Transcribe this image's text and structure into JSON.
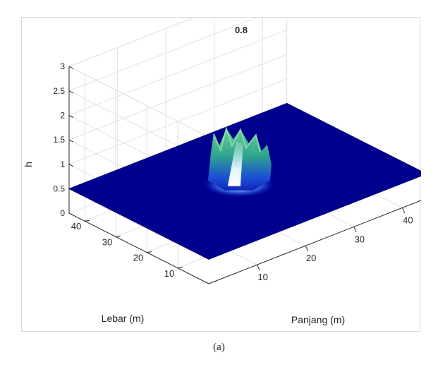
{
  "chart_data": {
    "type": "surface3d",
    "title": "0.8",
    "xlabel": "Panjang (m)",
    "ylabel": "Lebar (m)",
    "zlabel": "h",
    "xlim": [
      0,
      45
    ],
    "ylim": [
      0,
      45
    ],
    "zlim": [
      0,
      3
    ],
    "x_ticks": [
      10,
      20,
      30,
      40
    ],
    "y_ticks": [
      10,
      20,
      30,
      40
    ],
    "z_ticks": [
      0,
      0.5,
      1,
      1.5,
      2,
      2.5,
      3
    ],
    "z_tick_labels": [
      "0",
      "0.5",
      "1",
      "1.5",
      "2",
      "2.5",
      "3"
    ],
    "grid": true,
    "surface": {
      "base_level": 0.5,
      "peak_center": [
        21,
        23
      ],
      "peak_height": 1.1,
      "colormap": [
        "#000080",
        "#0000cc",
        "#1e50e6",
        "#37b4a0",
        "#5ad282",
        "#cdf0ff"
      ]
    }
  },
  "caption": "(a)"
}
